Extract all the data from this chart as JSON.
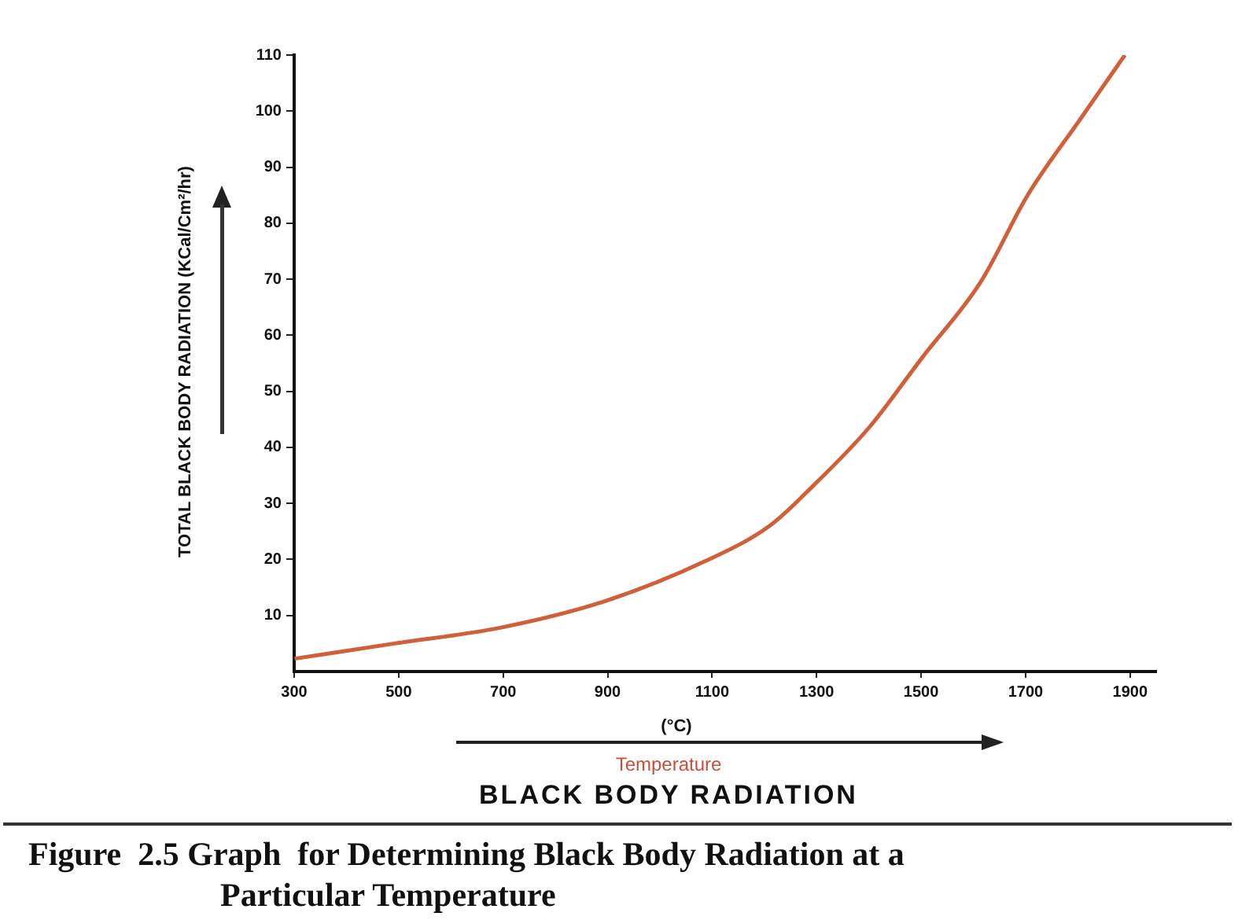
{
  "chart_data": {
    "type": "line",
    "title": "BLACK BODY RADIATION",
    "ylabel": "TOTAL BLACK BODY RADIATION (KCal/Cm²/hr)",
    "xlabel": "(°C)",
    "annotations": [
      "Temperature",
      "Figure  2.5 Graph  for Determining Black Body Radiation at a Particular Temperature"
    ],
    "x": [
      301,
      492,
      694,
      890,
      1087,
      1210,
      1294,
      1401,
      1502,
      1614,
      1704,
      1805,
      1890
    ],
    "series": [
      {
        "color": "#d0603a",
        "values": [
          2.3,
          5.0,
          7.8,
          12.4,
          19.7,
          26,
          33.2,
          43.6,
          56,
          69.5,
          85,
          98.6,
          110
        ]
      }
    ],
    "xlim": [
      300,
      1950
    ],
    "xticks": [
      300,
      500,
      700,
      900,
      1100,
      1300,
      1500,
      1700,
      1900
    ],
    "ylim": [
      0,
      110
    ],
    "yticks": [
      10,
      20,
      30,
      40,
      50,
      60,
      70,
      80,
      90,
      100,
      110
    ],
    "grid": false,
    "legend": false,
    "marker": "none",
    "line_style": "solid"
  }
}
